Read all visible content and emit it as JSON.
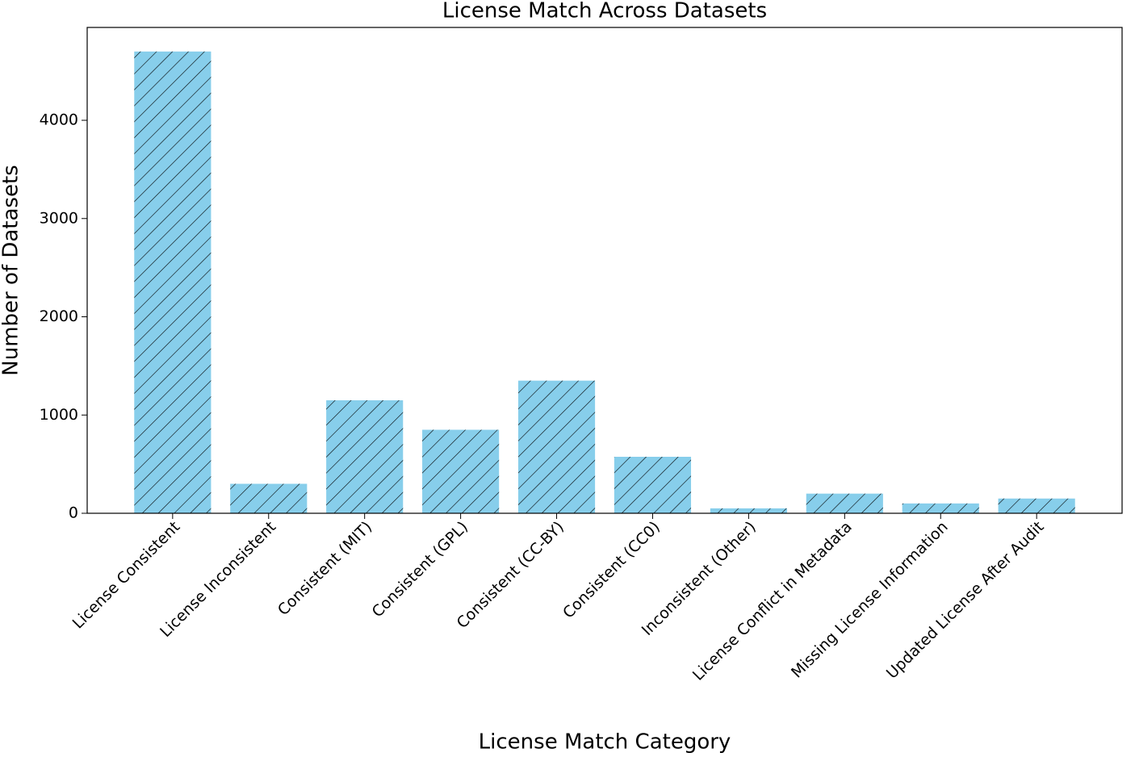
{
  "chart_data": {
    "type": "bar",
    "title": "License Match Across Datasets",
    "x_label": "License Match Category",
    "y_label": "Number of Datasets",
    "categories": [
      "License Consistent",
      "License Inconsistent",
      "Consistent (MIT)",
      "Consistent (GPL)",
      "Consistent (CC-BY)",
      "Consistent (CC0)",
      "Inconsistent (Other)",
      "License Conflict in Metadata",
      "Missing License Information",
      "Updated License After Audit"
    ],
    "values": [
      4700,
      300,
      1150,
      850,
      1350,
      575,
      50,
      200,
      100,
      150
    ],
    "color": "#87ceeb",
    "hatch": "//",
    "ylim": [
      0,
      4945
    ],
    "yticks": [
      0,
      1000,
      2000,
      3000,
      4000
    ],
    "grid": false
  }
}
